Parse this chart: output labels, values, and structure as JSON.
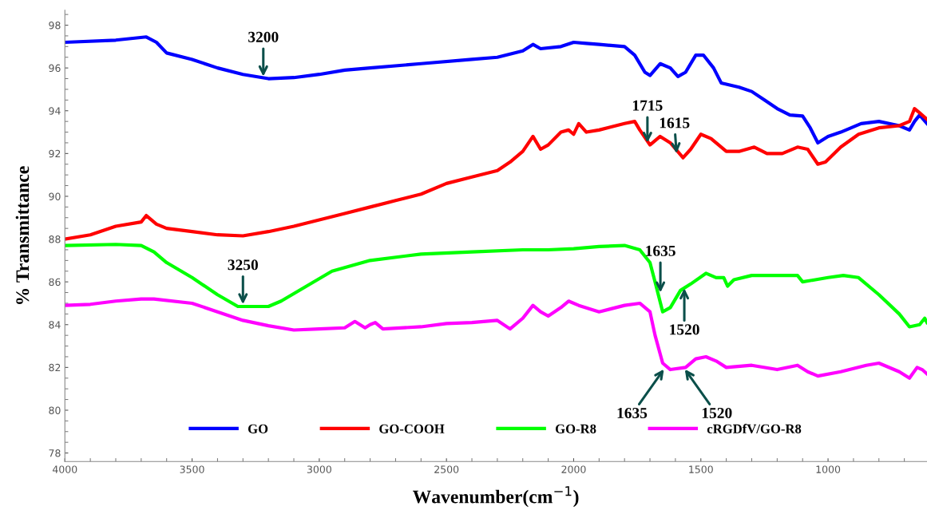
{
  "chart_data": {
    "type": "line",
    "xlabel": "Wavenumber(cm$^{−1}$)",
    "ylabel": "% Transmittance",
    "xlim": [
      4000,
      611
    ],
    "xticks": [
      4000,
      3500,
      3000,
      2500,
      2000,
      1500,
      1000
    ],
    "ylim": [
      77.6,
      98.7
    ],
    "yticks": [
      78,
      80,
      82,
      84,
      86,
      88,
      90,
      92,
      94,
      96,
      98
    ],
    "grid": false,
    "legend": "bottom",
    "line_style": "solid",
    "marker": "none",
    "series": [
      {
        "name": "GO",
        "color": "#0000ff",
        "x": [
          4000,
          3800,
          3680,
          3640,
          3600,
          3500,
          3400,
          3300,
          3200,
          3100,
          3000,
          2900,
          2800,
          2600,
          2400,
          2300,
          2200,
          2160,
          2130,
          2050,
          2000,
          1950,
          1900,
          1800,
          1760,
          1720,
          1700,
          1660,
          1620,
          1590,
          1560,
          1520,
          1490,
          1450,
          1420,
          1350,
          1300,
          1250,
          1200,
          1150,
          1100,
          1070,
          1040,
          1000,
          950,
          870,
          800,
          720,
          680,
          660,
          640,
          611
        ],
        "values": [
          97.2,
          97.3,
          97.45,
          97.2,
          96.7,
          96.4,
          96.0,
          95.7,
          95.5,
          95.55,
          95.7,
          95.9,
          96.0,
          96.2,
          96.4,
          96.5,
          96.8,
          97.1,
          96.9,
          97.0,
          97.2,
          97.15,
          97.1,
          97.0,
          96.6,
          95.8,
          95.65,
          96.2,
          96.0,
          95.6,
          95.8,
          96.6,
          96.6,
          96.0,
          95.3,
          95.1,
          94.9,
          94.5,
          94.1,
          93.8,
          93.75,
          93.2,
          92.5,
          92.8,
          93.0,
          93.4,
          93.5,
          93.3,
          93.1,
          93.5,
          93.8,
          93.4
        ]
      },
      {
        "name": "GO-COOH",
        "color": "#ff0000",
        "x": [
          4000,
          3900,
          3800,
          3700,
          3680,
          3640,
          3600,
          3500,
          3400,
          3300,
          3200,
          3100,
          3000,
          2900,
          2800,
          2700,
          2600,
          2500,
          2400,
          2300,
          2250,
          2200,
          2160,
          2130,
          2100,
          2050,
          2020,
          2000,
          1980,
          1950,
          1900,
          1800,
          1760,
          1740,
          1700,
          1660,
          1620,
          1570,
          1540,
          1500,
          1460,
          1400,
          1350,
          1290,
          1240,
          1180,
          1120,
          1080,
          1040,
          1010,
          950,
          880,
          800,
          720,
          680,
          660,
          640,
          611
        ],
        "values": [
          88.0,
          88.2,
          88.6,
          88.8,
          89.1,
          88.7,
          88.5,
          88.35,
          88.2,
          88.15,
          88.35,
          88.6,
          88.9,
          89.2,
          89.5,
          89.8,
          90.1,
          90.6,
          90.9,
          91.2,
          91.6,
          92.1,
          92.8,
          92.2,
          92.4,
          93.0,
          93.1,
          92.9,
          93.4,
          93.0,
          93.1,
          93.4,
          93.5,
          93.1,
          92.4,
          92.8,
          92.5,
          91.8,
          92.2,
          92.9,
          92.7,
          92.1,
          92.1,
          92.3,
          92.0,
          92.0,
          92.3,
          92.2,
          91.5,
          91.6,
          92.3,
          92.9,
          93.2,
          93.3,
          93.5,
          94.1,
          93.9,
          93.6
        ]
      },
      {
        "name": "GO-R8",
        "color": "#00ff00",
        "x": [
          4000,
          3800,
          3700,
          3650,
          3600,
          3500,
          3400,
          3320,
          3200,
          3150,
          3050,
          2950,
          2800,
          2600,
          2400,
          2200,
          2100,
          2000,
          1900,
          1800,
          1740,
          1700,
          1680,
          1650,
          1620,
          1580,
          1540,
          1480,
          1440,
          1410,
          1395,
          1370,
          1300,
          1200,
          1120,
          1100,
          1050,
          1000,
          940,
          880,
          800,
          720,
          680,
          640,
          620,
          611
        ],
        "values": [
          87.7,
          87.75,
          87.7,
          87.4,
          86.9,
          86.2,
          85.4,
          84.85,
          84.85,
          85.1,
          85.8,
          86.5,
          87.0,
          87.3,
          87.4,
          87.5,
          87.5,
          87.55,
          87.65,
          87.7,
          87.5,
          86.9,
          86.0,
          84.6,
          84.8,
          85.6,
          85.9,
          86.4,
          86.2,
          86.2,
          85.8,
          86.1,
          86.3,
          86.3,
          86.3,
          86.0,
          86.1,
          86.2,
          86.3,
          86.2,
          85.4,
          84.5,
          83.9,
          84.0,
          84.3,
          84.1
        ]
      },
      {
        "name": "cRGDfV/GO-R8",
        "color": "#ff00ff",
        "x": [
          4000,
          3900,
          3800,
          3700,
          3650,
          3500,
          3400,
          3300,
          3200,
          3100,
          3000,
          2900,
          2860,
          2820,
          2800,
          2780,
          2750,
          2600,
          2500,
          2400,
          2300,
          2250,
          2200,
          2160,
          2130,
          2100,
          2050,
          2020,
          1980,
          1900,
          1800,
          1740,
          1700,
          1680,
          1650,
          1620,
          1560,
          1520,
          1480,
          1440,
          1400,
          1300,
          1200,
          1120,
          1080,
          1040,
          950,
          850,
          800,
          720,
          680,
          650,
          630,
          611
        ],
        "values": [
          84.9,
          84.95,
          85.1,
          85.2,
          85.2,
          85.0,
          84.6,
          84.2,
          83.95,
          83.75,
          83.8,
          83.85,
          84.15,
          83.85,
          84.0,
          84.1,
          83.8,
          83.9,
          84.05,
          84.1,
          84.2,
          83.8,
          84.3,
          84.9,
          84.6,
          84.4,
          84.8,
          85.1,
          84.9,
          84.6,
          84.9,
          85.0,
          84.6,
          83.5,
          82.2,
          81.9,
          82.0,
          82.4,
          82.5,
          82.3,
          82.0,
          82.1,
          81.9,
          82.1,
          81.8,
          81.6,
          81.8,
          82.1,
          82.2,
          81.8,
          81.5,
          82.0,
          81.9,
          81.7
        ]
      }
    ],
    "annotations": [
      {
        "text": "3200",
        "x": 3220,
        "y": 95.5
      },
      {
        "text": "1715",
        "x": 1710,
        "y": 92.4
      },
      {
        "text": "1615",
        "x": 1595,
        "y": 91.9
      },
      {
        "text": "3250",
        "x": 3300,
        "y": 84.85
      },
      {
        "text": "1635",
        "x": 1659,
        "y": 85.4
      },
      {
        "text": "1520",
        "x": 1565,
        "y": 85.8
      },
      {
        "text": "1635",
        "x": 1640,
        "y": 82.0
      },
      {
        "text": "1520",
        "x": 1568,
        "y": 82.0
      }
    ]
  }
}
